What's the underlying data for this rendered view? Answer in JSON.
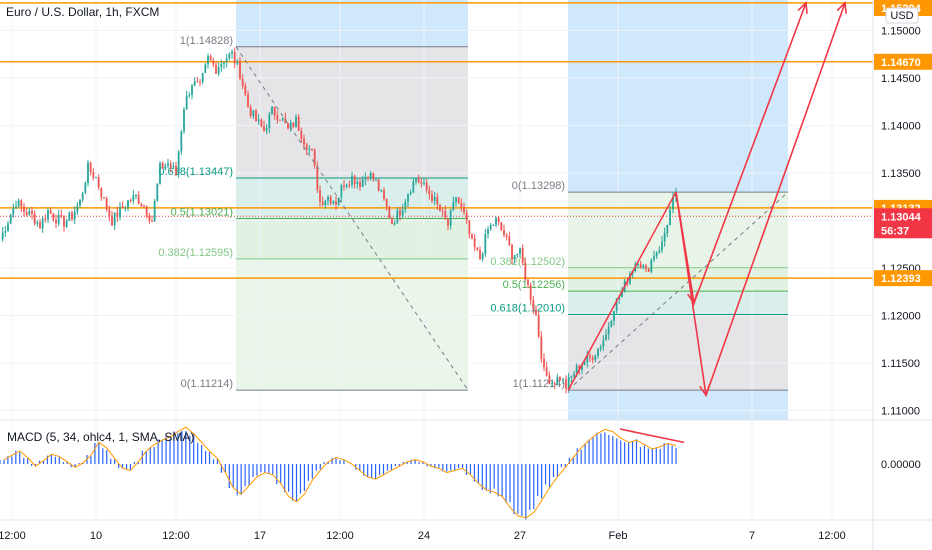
{
  "header": {
    "title": "Euro / U.S. Dollar, 1h, FXCM",
    "currency": "USD"
  },
  "macd_label": "MACD (5, 34, ohlc4, 1, SMA, SMA)",
  "colors": {
    "up": "#26a69a",
    "down": "#ef5350",
    "orange": "#ff9800",
    "arrow": "#f23645",
    "macd": "#2962ff",
    "price_tag": "#f23645",
    "level_tag": "#ff9800"
  },
  "chart_data": [
    {
      "type": "candlestick",
      "title": "Euro / U.S. Dollar, 1h, FXCM",
      "ylim": [
        1.109,
        1.1532
      ],
      "y_ticks": [
        "1.11000",
        "1.11500",
        "1.12000",
        "1.12500",
        "1.13000",
        "1.13500",
        "1.14000",
        "1.14500",
        "1.15000"
      ],
      "y_tick_values": [
        1.11,
        1.115,
        1.12,
        1.125,
        1.13,
        1.135,
        1.14,
        1.145,
        1.15
      ],
      "x_ticks": [
        "12:00",
        "10",
        "12:00",
        "17",
        "12:00",
        "24",
        "27",
        "Feb",
        "7",
        "12:00"
      ],
      "horizontal_levels": [
        {
          "value": 1.1529,
          "label": "1.15294"
        },
        {
          "value": 1.1467,
          "label": "1.14670"
        },
        {
          "value": 1.13132,
          "label": "1.13132"
        },
        {
          "value": 1.12393,
          "label": "1.12393"
        }
      ],
      "current_price": {
        "value": 1.13044,
        "label": "1.13044",
        "countdown": "56:37"
      },
      "series": [
        {
          "x": 0,
          "y": 1.128
        },
        {
          "x": 8,
          "y": 1.13
        },
        {
          "x": 16,
          "y": 1.132
        },
        {
          "x": 24,
          "y": 1.131
        },
        {
          "x": 32,
          "y": 1.1305
        },
        {
          "x": 40,
          "y": 1.1295
        },
        {
          "x": 48,
          "y": 1.131
        },
        {
          "x": 56,
          "y": 1.1302
        },
        {
          "x": 64,
          "y": 1.1298
        },
        {
          "x": 72,
          "y": 1.1305
        },
        {
          "x": 80,
          "y": 1.132
        },
        {
          "x": 88,
          "y": 1.1355
        },
        {
          "x": 96,
          "y": 1.1345
        },
        {
          "x": 104,
          "y": 1.132
        },
        {
          "x": 112,
          "y": 1.13
        },
        {
          "x": 120,
          "y": 1.131
        },
        {
          "x": 128,
          "y": 1.132
        },
        {
          "x": 136,
          "y": 1.1325
        },
        {
          "x": 144,
          "y": 1.1315
        },
        {
          "x": 152,
          "y": 1.13
        },
        {
          "x": 160,
          "y": 1.1355
        },
        {
          "x": 168,
          "y": 1.136
        },
        {
          "x": 176,
          "y": 1.135
        },
        {
          "x": 184,
          "y": 1.142
        },
        {
          "x": 192,
          "y": 1.1445
        },
        {
          "x": 200,
          "y": 1.144
        },
        {
          "x": 208,
          "y": 1.147
        },
        {
          "x": 216,
          "y": 1.146
        },
        {
          "x": 224,
          "y": 1.147
        },
        {
          "x": 232,
          "y": 1.1475
        },
        {
          "x": 240,
          "y": 1.1455
        },
        {
          "x": 248,
          "y": 1.142
        },
        {
          "x": 256,
          "y": 1.1405
        },
        {
          "x": 264,
          "y": 1.1395
        },
        {
          "x": 272,
          "y": 1.1415
        },
        {
          "x": 280,
          "y": 1.141
        },
        {
          "x": 288,
          "y": 1.1395
        },
        {
          "x": 296,
          "y": 1.1405
        },
        {
          "x": 304,
          "y": 1.1385
        },
        {
          "x": 312,
          "y": 1.137
        },
        {
          "x": 320,
          "y": 1.132
        },
        {
          "x": 328,
          "y": 1.1325
        },
        {
          "x": 336,
          "y": 1.132
        },
        {
          "x": 344,
          "y": 1.134
        },
        {
          "x": 352,
          "y": 1.1345
        },
        {
          "x": 360,
          "y": 1.134
        },
        {
          "x": 368,
          "y": 1.135
        },
        {
          "x": 376,
          "y": 1.134
        },
        {
          "x": 384,
          "y": 1.132
        },
        {
          "x": 392,
          "y": 1.1298
        },
        {
          "x": 400,
          "y": 1.131
        },
        {
          "x": 408,
          "y": 1.133
        },
        {
          "x": 416,
          "y": 1.1345
        },
        {
          "x": 424,
          "y": 1.1335
        },
        {
          "x": 432,
          "y": 1.1325
        },
        {
          "x": 440,
          "y": 1.131
        },
        {
          "x": 448,
          "y": 1.1295
        },
        {
          "x": 456,
          "y": 1.1325
        },
        {
          "x": 464,
          "y": 1.1305
        },
        {
          "x": 472,
          "y": 1.1275
        },
        {
          "x": 480,
          "y": 1.126
        },
        {
          "x": 488,
          "y": 1.129
        },
        {
          "x": 496,
          "y": 1.13
        },
        {
          "x": 504,
          "y": 1.1285
        },
        {
          "x": 512,
          "y": 1.1265
        },
        {
          "x": 520,
          "y": 1.1265
        },
        {
          "x": 528,
          "y": 1.123
        },
        {
          "x": 536,
          "y": 1.12
        },
        {
          "x": 544,
          "y": 1.114
        },
        {
          "x": 552,
          "y": 1.113
        },
        {
          "x": 560,
          "y": 1.1135
        },
        {
          "x": 566,
          "y": 1.1125
        },
        {
          "x": 574,
          "y": 1.114
        },
        {
          "x": 582,
          "y": 1.115
        },
        {
          "x": 590,
          "y": 1.1155
        },
        {
          "x": 598,
          "y": 1.1165
        },
        {
          "x": 606,
          "y": 1.118
        },
        {
          "x": 614,
          "y": 1.121
        },
        {
          "x": 622,
          "y": 1.1225
        },
        {
          "x": 630,
          "y": 1.1245
        },
        {
          "x": 638,
          "y": 1.126
        },
        {
          "x": 646,
          "y": 1.1245
        },
        {
          "x": 654,
          "y": 1.1265
        },
        {
          "x": 662,
          "y": 1.1275
        },
        {
          "x": 670,
          "y": 1.131
        },
        {
          "x": 676,
          "y": 1.133
        }
      ],
      "fib_retracements": [
        {
          "name": "fib-1",
          "x_start": 236,
          "x_end": 468,
          "levels": [
            {
              "ratio": "1",
              "price": "1.14828",
              "value": 1.14828,
              "color": "#787b86",
              "label": "1(1.14828)"
            },
            {
              "ratio": "0.618",
              "price": "1.13447",
              "value": 1.13447,
              "color": "#089981",
              "label": "0.618(1.13447)"
            },
            {
              "ratio": "0.5",
              "price": "1.13021",
              "value": 1.13021,
              "color": "#4caf50",
              "label": "0.5(1.13021)"
            },
            {
              "ratio": "0.382",
              "price": "1.12595",
              "value": 1.12595,
              "color": "#81c784",
              "label": "0.382(1.12595)"
            },
            {
              "ratio": "0",
              "price": "1.11214",
              "value": 1.11214,
              "color": "#787b86",
              "label": "0(1.11214)"
            }
          ]
        },
        {
          "name": "fib-2",
          "x_start": 568,
          "x_end": 788,
          "levels": [
            {
              "ratio": "0",
              "price": "1.13298",
              "value": 1.13298,
              "color": "#787b86",
              "label": "0(1.13298)"
            },
            {
              "ratio": "0.382",
              "price": "1.12502",
              "value": 1.12502,
              "color": "#81c784",
              "label": "0.382(1.12502)"
            },
            {
              "ratio": "0.5",
              "price": "1.12256",
              "value": 1.12256,
              "color": "#4caf50",
              "label": "0.5(1.12256)"
            },
            {
              "ratio": "0.618",
              "price": "1.12010",
              "value": 1.1201,
              "color": "#089981",
              "label": "0.618(1.12010)"
            },
            {
              "ratio": "1",
              "price": "1.11214",
              "value": 1.11214,
              "color": "#787b86",
              "label": "1(1.11214)"
            }
          ]
        }
      ],
      "projection_arrows": [
        {
          "points": [
            [
              676,
              1.133
            ],
            [
              694,
              1.1213
            ],
            [
              806,
              1.1529
            ]
          ]
        },
        {
          "points": [
            [
              676,
              1.133
            ],
            [
              706,
              1.1116
            ],
            [
              845,
              1.1529
            ]
          ]
        }
      ],
      "trend_lines": [
        {
          "points": [
            [
              568,
              1.1121
            ],
            [
              676,
              1.133
            ]
          ]
        }
      ]
    },
    {
      "type": "bar",
      "title": "MACD (5, 34, ohlc4, 1, SMA, SMA)",
      "y_ticks": [
        "0.00000"
      ],
      "y_tick_values": [
        0
      ],
      "ylim": [
        -0.0055,
        0.004
      ],
      "values": [
        0.0004,
        0.0008,
        0.0012,
        0.0006,
        -0.0002,
        0.0003,
        0.0009,
        0.0007,
        0.0002,
        -0.0003,
        0.0001,
        0.0008,
        0.002,
        0.0015,
        0.0005,
        -0.0004,
        -0.0006,
        0.0002,
        0.0012,
        0.0018,
        0.0022,
        0.0025,
        0.003,
        0.0034,
        0.0028,
        0.002,
        0.0012,
        0.0005,
        -0.0008,
        -0.0022,
        -0.0028,
        -0.002,
        -0.0012,
        -0.0008,
        -0.001,
        -0.0018,
        -0.003,
        -0.0035,
        -0.0028,
        -0.0015,
        -0.0006,
        0.0002,
        0.0006,
        0.0004,
        0.0,
        -0.0006,
        -0.0012,
        -0.0014,
        -0.001,
        -0.0006,
        -0.0002,
        0.0002,
        0.0004,
        0.0002,
        -0.0002,
        -0.0004,
        -0.0008,
        -0.0006,
        -0.0004,
        -0.001,
        -0.0018,
        -0.0024,
        -0.0026,
        -0.003,
        -0.004,
        -0.0048,
        -0.005,
        -0.0045,
        -0.0034,
        -0.0022,
        -0.0012,
        -0.0003,
        0.0006,
        0.0015,
        0.0022,
        0.0028,
        0.0032,
        0.003,
        0.0024,
        0.002,
        0.0022,
        0.0018,
        0.0014,
        0.0016,
        0.0019,
        0.0017
      ],
      "divergence_line": {
        "points": [
          [
            620,
            0.0034
          ],
          [
            684,
            0.0021
          ]
        ]
      }
    }
  ]
}
